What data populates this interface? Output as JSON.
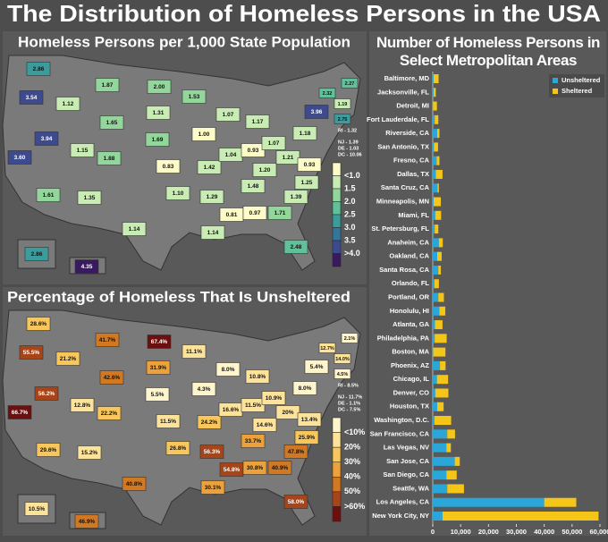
{
  "title": "The Distribution of Homeless Persons in the USA",
  "chart_data": [
    {
      "type": "choropleth",
      "title": "Homeless Persons per 1,000 State Population",
      "values": [
        2.86,
        3.54,
        3.6,
        3.94,
        1.12,
        1.87,
        1.65,
        1.15,
        1.61,
        1.88,
        1.35,
        2.0,
        1.31,
        1.69,
        0.83,
        1.1,
        1.14,
        1.53,
        1.0,
        1.42,
        1.29,
        1.14,
        1.07,
        1.04,
        0.81,
        1.17,
        0.93,
        1.2,
        1.48,
        0.97,
        1.07,
        1.21,
        0.93,
        1.25,
        1.39,
        1.71,
        2.48,
        1.18,
        3.96,
        2.32,
        1.19,
        2.27,
        2.75,
        2.86,
        4.35
      ],
      "value_labels": [
        "2.86",
        "3.54",
        "3.60",
        "3.94",
        "1.12",
        "1.87",
        "1.65",
        "1.15",
        "1.61",
        "1.88",
        "1.35",
        "2.00",
        "1.31",
        "1.69",
        "0.83",
        "1.10",
        "1.14",
        "1.53",
        "1.00",
        "1.42",
        "1.29",
        "1.14",
        "1.07",
        "1.04",
        "0.81",
        "1.17",
        "0.93",
        "1.20",
        "1.48",
        "0.97",
        "1.07",
        "1.21",
        "0.93",
        "1.25",
        "1.39",
        "1.71",
        "2.48",
        "1.18",
        "3.96",
        "2.32",
        "1.19",
        "2.27",
        "2.75",
        "2.86",
        "4.35"
      ],
      "callouts": [
        "RI - 1.32",
        "NJ - 1.39",
        "DE - 1.03",
        "DC - 10.06"
      ],
      "color_scale": {
        "ticks": [
          {
            "value": 1.0,
            "label": "<1.0"
          },
          1.5,
          {
            "value": 2,
            "label": "2.0"
          },
          2.5,
          {
            "value": 3,
            "label": "3.0"
          },
          3.5,
          {
            "value": 4,
            "label": ">4.0"
          }
        ],
        "colors": [
          "#fdfbc8",
          "#c9ebb4",
          "#92d69c",
          "#5fc09a",
          "#3c9c9c",
          "#36759a",
          "#3d4a8e",
          "#3a1a5e"
        ]
      }
    },
    {
      "type": "choropleth",
      "title": "Percentage of Homeless That Is Unsheltered",
      "values": [
        28.6,
        55.5,
        66.7,
        56.2,
        21.2,
        41.7,
        42.6,
        12.8,
        29.6,
        22.2,
        15.2,
        67.4,
        31.9,
        5.5,
        11.5,
        26.8,
        40.8,
        11.1,
        4.3,
        24.2,
        56.3,
        30.1,
        8.0,
        16.6,
        54.8,
        10.8,
        11.5,
        14.6,
        33.7,
        30.8,
        10.9,
        20,
        13.4,
        25.9,
        47.8,
        40.9,
        58.0,
        8.0,
        5.4,
        12.7,
        14.0,
        2.1,
        4.5,
        10.5,
        46.9
      ],
      "value_labels": [
        "28.6%",
        "55.5%",
        "66.7%",
        "56.2%",
        "21.2%",
        "41.7%",
        "42.6%",
        "12.8%",
        "29.6%",
        "22.2%",
        "15.2%",
        "67.4%",
        "31.9%",
        "5.5%",
        "11.5%",
        "26.8%",
        "40.8%",
        "11.1%",
        "4.3%",
        "24.2%",
        "56.3%",
        "30.1%",
        "8.0%",
        "16.6%",
        "54.8%",
        "10.8%",
        "11.5%",
        "14.6%",
        "33.7%",
        "30.8%",
        "10.9%",
        "20%",
        "13.4%",
        "25.9%",
        "47.8%",
        "40.9%",
        "58.0%",
        "8.0%",
        "5.4%",
        "12.7%",
        "14.0%",
        "2.1%",
        "4.5%",
        "10.5%",
        "46.9%"
      ],
      "callouts": [
        "RI - 8.5%",
        "NJ - 11.7%",
        "DE - 1.1%",
        "DC - 7.5%"
      ],
      "color_scale": {
        "ticks": [
          {
            "value": 10,
            "label": "<10%"
          },
          {
            "value": 20,
            "label": "20%"
          },
          {
            "value": 30,
            "label": "30%"
          },
          {
            "value": 40,
            "label": "40%"
          },
          {
            "value": 50,
            "label": "50%"
          },
          {
            "value": 60,
            "label": ">60%"
          }
        ],
        "colors": [
          "#fff5cc",
          "#fde39a",
          "#f8c65a",
          "#eca13a",
          "#d07822",
          "#a6441a",
          "#6c0f0f"
        ]
      }
    },
    {
      "type": "stacked-bar",
      "title": "Number of Homeless Persons in Select Metropolitan Areas",
      "categories": [
        "Baltimore, MD",
        "Jacksonville, FL",
        "Detroit, MI",
        "Fort Lauderdale, FL",
        "Riverside, CA",
        "San Antonio, TX",
        "Fresno, CA",
        "Dallas, TX",
        "Santa Cruz, CA",
        "Minneapolis, MN",
        "Miami, FL",
        "St. Petersburg, FL",
        "Anaheim, CA",
        "Oakland, CA",
        "Santa Rosa, CA",
        "Orlando, FL",
        "Portland, OR",
        "Honolulu, HI",
        "Atlanta, GA",
        "Philadelphia, PA",
        "Boston, MA",
        "Phoenix, AZ",
        "Chicago, IL",
        "Denver, CO",
        "Houston, TX",
        "Washington, D.C.",
        "San Francisco, CA",
        "Las Vegas, NV",
        "San Jose, CA",
        "San Diego, CA",
        "Seattle, WA",
        "Los Angeles, CA",
        "New York City, NY"
      ],
      "series": [
        {
          "name": "Unsheltered",
          "color": "#2aa7d8",
          "values": [
            300,
            300,
            100,
            700,
            1600,
            400,
            1400,
            1100,
            1700,
            300,
            900,
            700,
            2200,
            1600,
            2000,
            600,
            2000,
            2400,
            800,
            700,
            150,
            2600,
            1500,
            900,
            1600,
            600,
            5200,
            4900,
            7900,
            4900,
            5200,
            40000,
            3500
          ]
        },
        {
          "name": "Sheltered",
          "color": "#f5c518",
          "values": [
            1800,
            800,
            1400,
            1300,
            800,
            1500,
            1000,
            2400,
            500,
            2600,
            2100,
            1300,
            1400,
            1600,
            900,
            1600,
            2000,
            2100,
            2700,
            4300,
            4400,
            2000,
            4000,
            4700,
            2300,
            6000,
            2800,
            1600,
            1800,
            3700,
            6000,
            11500,
            56000
          ]
        }
      ],
      "xlim": [
        0,
        60000
      ],
      "xticks": [
        0,
        {
          "value": 10000,
          "label": "10,000"
        },
        {
          "value": 20000,
          "label": "20,000"
        },
        {
          "value": 30000,
          "label": "30,000"
        },
        {
          "value": 40000,
          "label": "40,000"
        },
        {
          "value": 50000,
          "label": "50,000"
        },
        {
          "value": 60000,
          "label": "60,000"
        }
      ],
      "legend": "top-right"
    }
  ]
}
